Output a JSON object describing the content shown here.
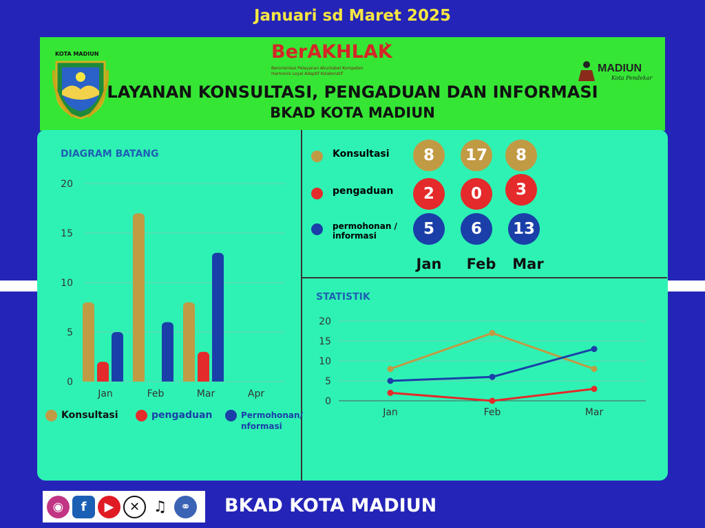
{
  "period": "Januari  sd Maret 2025",
  "header": {
    "kota_label": "KOTA MADIUN",
    "berakhlak": "BerAKHLAK",
    "berakhlak_sub1": "Berorientasi Pelayanan Akuntabel Kompeten",
    "berakhlak_sub2": "Harmonis Loyal Adaptif Kolaboratif",
    "madiun_logo": "MADIUN",
    "madiun_tagline": "Kota Pendekar",
    "title": "LAYANAN KONSULTASI, PENGADUAN DAN INFORMASI",
    "subtitle": "BKAD KOTA MADIUN"
  },
  "colors": {
    "konsultasi": "#c19a44",
    "pengaduan": "#e42a2a",
    "permohonan": "#1a3fa8",
    "panel": "#2ef2b4",
    "header": "#35e635",
    "background": "#2424b8"
  },
  "summary": {
    "rows": [
      {
        "label": "Konsultasi",
        "values": [
          "8",
          "17",
          "8"
        ]
      },
      {
        "label": "pengaduan",
        "values": [
          "2",
          "0",
          "3"
        ]
      },
      {
        "label": "permohonan / informasi",
        "values": [
          "5",
          "6",
          "13"
        ]
      }
    ],
    "months": [
      "Jan",
      "Feb",
      "Mar"
    ]
  },
  "bar_legend": [
    "Konsultasi",
    "pengaduan",
    "Permohonan/ nformasi"
  ],
  "footer": {
    "name": "BKAD KOTA MADIUN",
    "social_icons": [
      "instagram-icon",
      "facebook-icon",
      "youtube-icon",
      "x-icon",
      "tiktok-icon",
      "website-icon"
    ]
  },
  "chart_data": [
    {
      "type": "bar",
      "title": "DIAGRAM BATANG",
      "categories": [
        "Jan",
        "Feb",
        "Mar",
        "Apr"
      ],
      "ylim": [
        0,
        20
      ],
      "yticks": [
        0,
        5,
        10,
        15,
        20
      ],
      "grid": true,
      "legend": "bottom",
      "series": [
        {
          "name": "Konsultasi",
          "values": [
            8,
            17,
            8,
            null
          ]
        },
        {
          "name": "pengaduan",
          "values": [
            2,
            null,
            3,
            null
          ]
        },
        {
          "name": "Permohonan/ nformasi",
          "values": [
            5,
            6,
            13,
            null
          ]
        }
      ]
    },
    {
      "type": "line",
      "title": "STATISTIK",
      "categories": [
        "Jan",
        "Feb",
        "Mar"
      ],
      "ylim": [
        0,
        20
      ],
      "yticks": [
        0,
        5,
        10,
        15,
        20
      ],
      "grid": true,
      "series": [
        {
          "values": [
            8,
            17,
            8
          ]
        },
        {
          "values": [
            2,
            0,
            3
          ]
        },
        {
          "values": [
            5,
            6,
            13
          ]
        }
      ]
    }
  ]
}
